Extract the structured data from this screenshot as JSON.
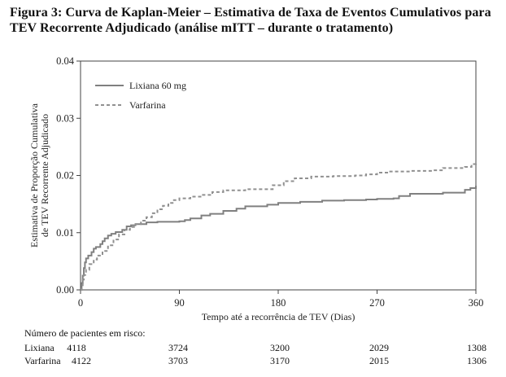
{
  "caption": "Figura 3: Curva de Kaplan-Meier – Estimativa de Taxa de Eventos Cumulativos para TEV Recorrente Adjudicado (análise mITT – durante o tratamento)",
  "chart_data": {
    "type": "line",
    "step": true,
    "title": "Figura 3: Curva de Kaplan-Meier – Estimativa de Taxa de Eventos Cumulativos para TEV Recorrente Adjudicado (análise mITT – durante o tratamento)",
    "xlabel": "Tempo até a recorrência de TEV  (Dias)",
    "ylabel": "Estimativa de Proporção Cumulativa de TEV Recorrente Adjudicado",
    "ylabel_lines": [
      "Estimativa de Proporção Cumulativa",
      "de TEV Recorrente Adjudicado"
    ],
    "xlim": [
      0,
      360
    ],
    "ylim": [
      0,
      0.04
    ],
    "x_ticks": [
      0,
      90,
      180,
      270,
      360
    ],
    "y_ticks": [
      0,
      0.01,
      0.02,
      0.03,
      0.04
    ],
    "x_tick_labels": [
      "0",
      "90",
      "180",
      "270",
      "360"
    ],
    "y_tick_labels": [
      "0.00",
      "0.01",
      "0.02",
      "0.03",
      "0.04"
    ],
    "legend_position": "top-left",
    "series": [
      {
        "name": "Lixiana 60 mg",
        "style": "solid",
        "color": "#808080",
        "x": [
          0,
          1,
          2,
          3,
          4,
          5,
          7,
          10,
          12,
          14,
          18,
          20,
          22,
          25,
          28,
          32,
          38,
          42,
          46,
          50,
          60,
          70,
          90,
          95,
          100,
          110,
          118,
          130,
          142,
          150,
          170,
          180,
          200,
          220,
          240,
          260,
          270,
          285,
          290,
          300,
          330,
          350,
          355,
          360
        ],
        "y": [
          0.0,
          0.0012,
          0.0025,
          0.0038,
          0.0048,
          0.0055,
          0.006,
          0.0066,
          0.0072,
          0.0075,
          0.008,
          0.0085,
          0.009,
          0.0095,
          0.0098,
          0.0101,
          0.0105,
          0.0111,
          0.0113,
          0.0115,
          0.0118,
          0.0119,
          0.012,
          0.0122,
          0.0125,
          0.013,
          0.0133,
          0.0138,
          0.0142,
          0.0146,
          0.0149,
          0.0152,
          0.0154,
          0.0156,
          0.0157,
          0.0158,
          0.0159,
          0.016,
          0.0164,
          0.0168,
          0.017,
          0.0175,
          0.0178,
          0.0182
        ]
      },
      {
        "name": "Varfarina",
        "style": "dashed",
        "color": "#909090",
        "x": [
          0,
          1,
          2,
          3,
          5,
          8,
          12,
          15,
          20,
          25,
          30,
          35,
          40,
          45,
          50,
          55,
          60,
          65,
          70,
          75,
          80,
          85,
          90,
          100,
          110,
          120,
          130,
          150,
          175,
          185,
          195,
          210,
          230,
          250,
          260,
          270,
          280,
          300,
          320,
          330,
          350,
          356,
          360
        ],
        "y": [
          0.0,
          0.0008,
          0.0018,
          0.0026,
          0.0035,
          0.0045,
          0.0053,
          0.006,
          0.0068,
          0.0078,
          0.0088,
          0.0097,
          0.0105,
          0.011,
          0.0115,
          0.0121,
          0.0127,
          0.0134,
          0.0141,
          0.0147,
          0.0152,
          0.0157,
          0.016,
          0.0163,
          0.0166,
          0.0171,
          0.0174,
          0.0176,
          0.0183,
          0.019,
          0.0195,
          0.0198,
          0.0199,
          0.02,
          0.0202,
          0.0205,
          0.0207,
          0.0208,
          0.0209,
          0.0213,
          0.0215,
          0.022,
          0.0221
        ]
      }
    ]
  },
  "risk_table": {
    "title": "Número de pacientes em risco:",
    "timepoints": [
      0,
      90,
      180,
      270,
      360
    ],
    "rows": [
      {
        "name": "Lixiana",
        "values": [
          "4118",
          "3724",
          "3200",
          "2029",
          "1308"
        ]
      },
      {
        "name": "Varfarina",
        "values": [
          "4122",
          "3703",
          "3170",
          "2015",
          "1306"
        ]
      }
    ]
  }
}
